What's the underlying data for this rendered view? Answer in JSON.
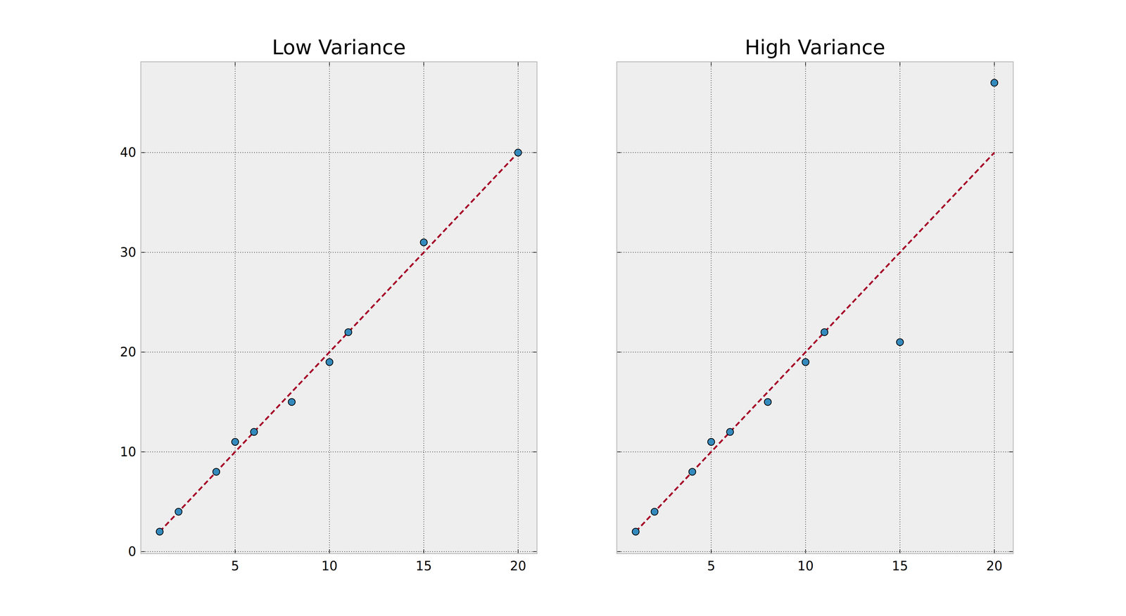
{
  "chart_data": [
    {
      "type": "scatter",
      "title": "Low Variance",
      "xlim": [
        0,
        21
      ],
      "ylim": [
        -0.2,
        49.1
      ],
      "xticks": [
        5,
        10,
        15,
        20
      ],
      "yticks": [
        0,
        10,
        20,
        30,
        40
      ],
      "grid": true,
      "series": [
        {
          "type": "scatter",
          "color": "#348ABD",
          "marker": "circle",
          "x": [
            1,
            2,
            4,
            5,
            6,
            8,
            10,
            11,
            15,
            20
          ],
          "values": [
            2,
            4,
            8,
            11,
            12,
            15,
            19,
            22,
            31,
            40
          ]
        },
        {
          "type": "line",
          "color": "#A60628",
          "line_style": "dashed",
          "x": [
            1,
            20
          ],
          "values": [
            2,
            40
          ]
        }
      ]
    },
    {
      "type": "scatter",
      "title": "High Variance",
      "xlim": [
        0,
        21
      ],
      "ylim": [
        -0.2,
        49.1
      ],
      "xticks": [
        5,
        10,
        15,
        20
      ],
      "yticks": [
        0,
        10,
        20,
        30,
        40
      ],
      "grid": true,
      "tick_labels": "x",
      "series": [
        {
          "type": "scatter",
          "color": "#348ABD",
          "marker": "circle",
          "x": [
            1,
            2,
            4,
            5,
            6,
            8,
            10,
            11,
            15,
            20
          ],
          "values": [
            2,
            4,
            8,
            11,
            12,
            15,
            19,
            22,
            21,
            47
          ]
        },
        {
          "type": "line",
          "color": "#A60628",
          "line_style": "dashed",
          "x": [
            1,
            20
          ],
          "values": [
            2,
            40
          ]
        }
      ]
    }
  ]
}
